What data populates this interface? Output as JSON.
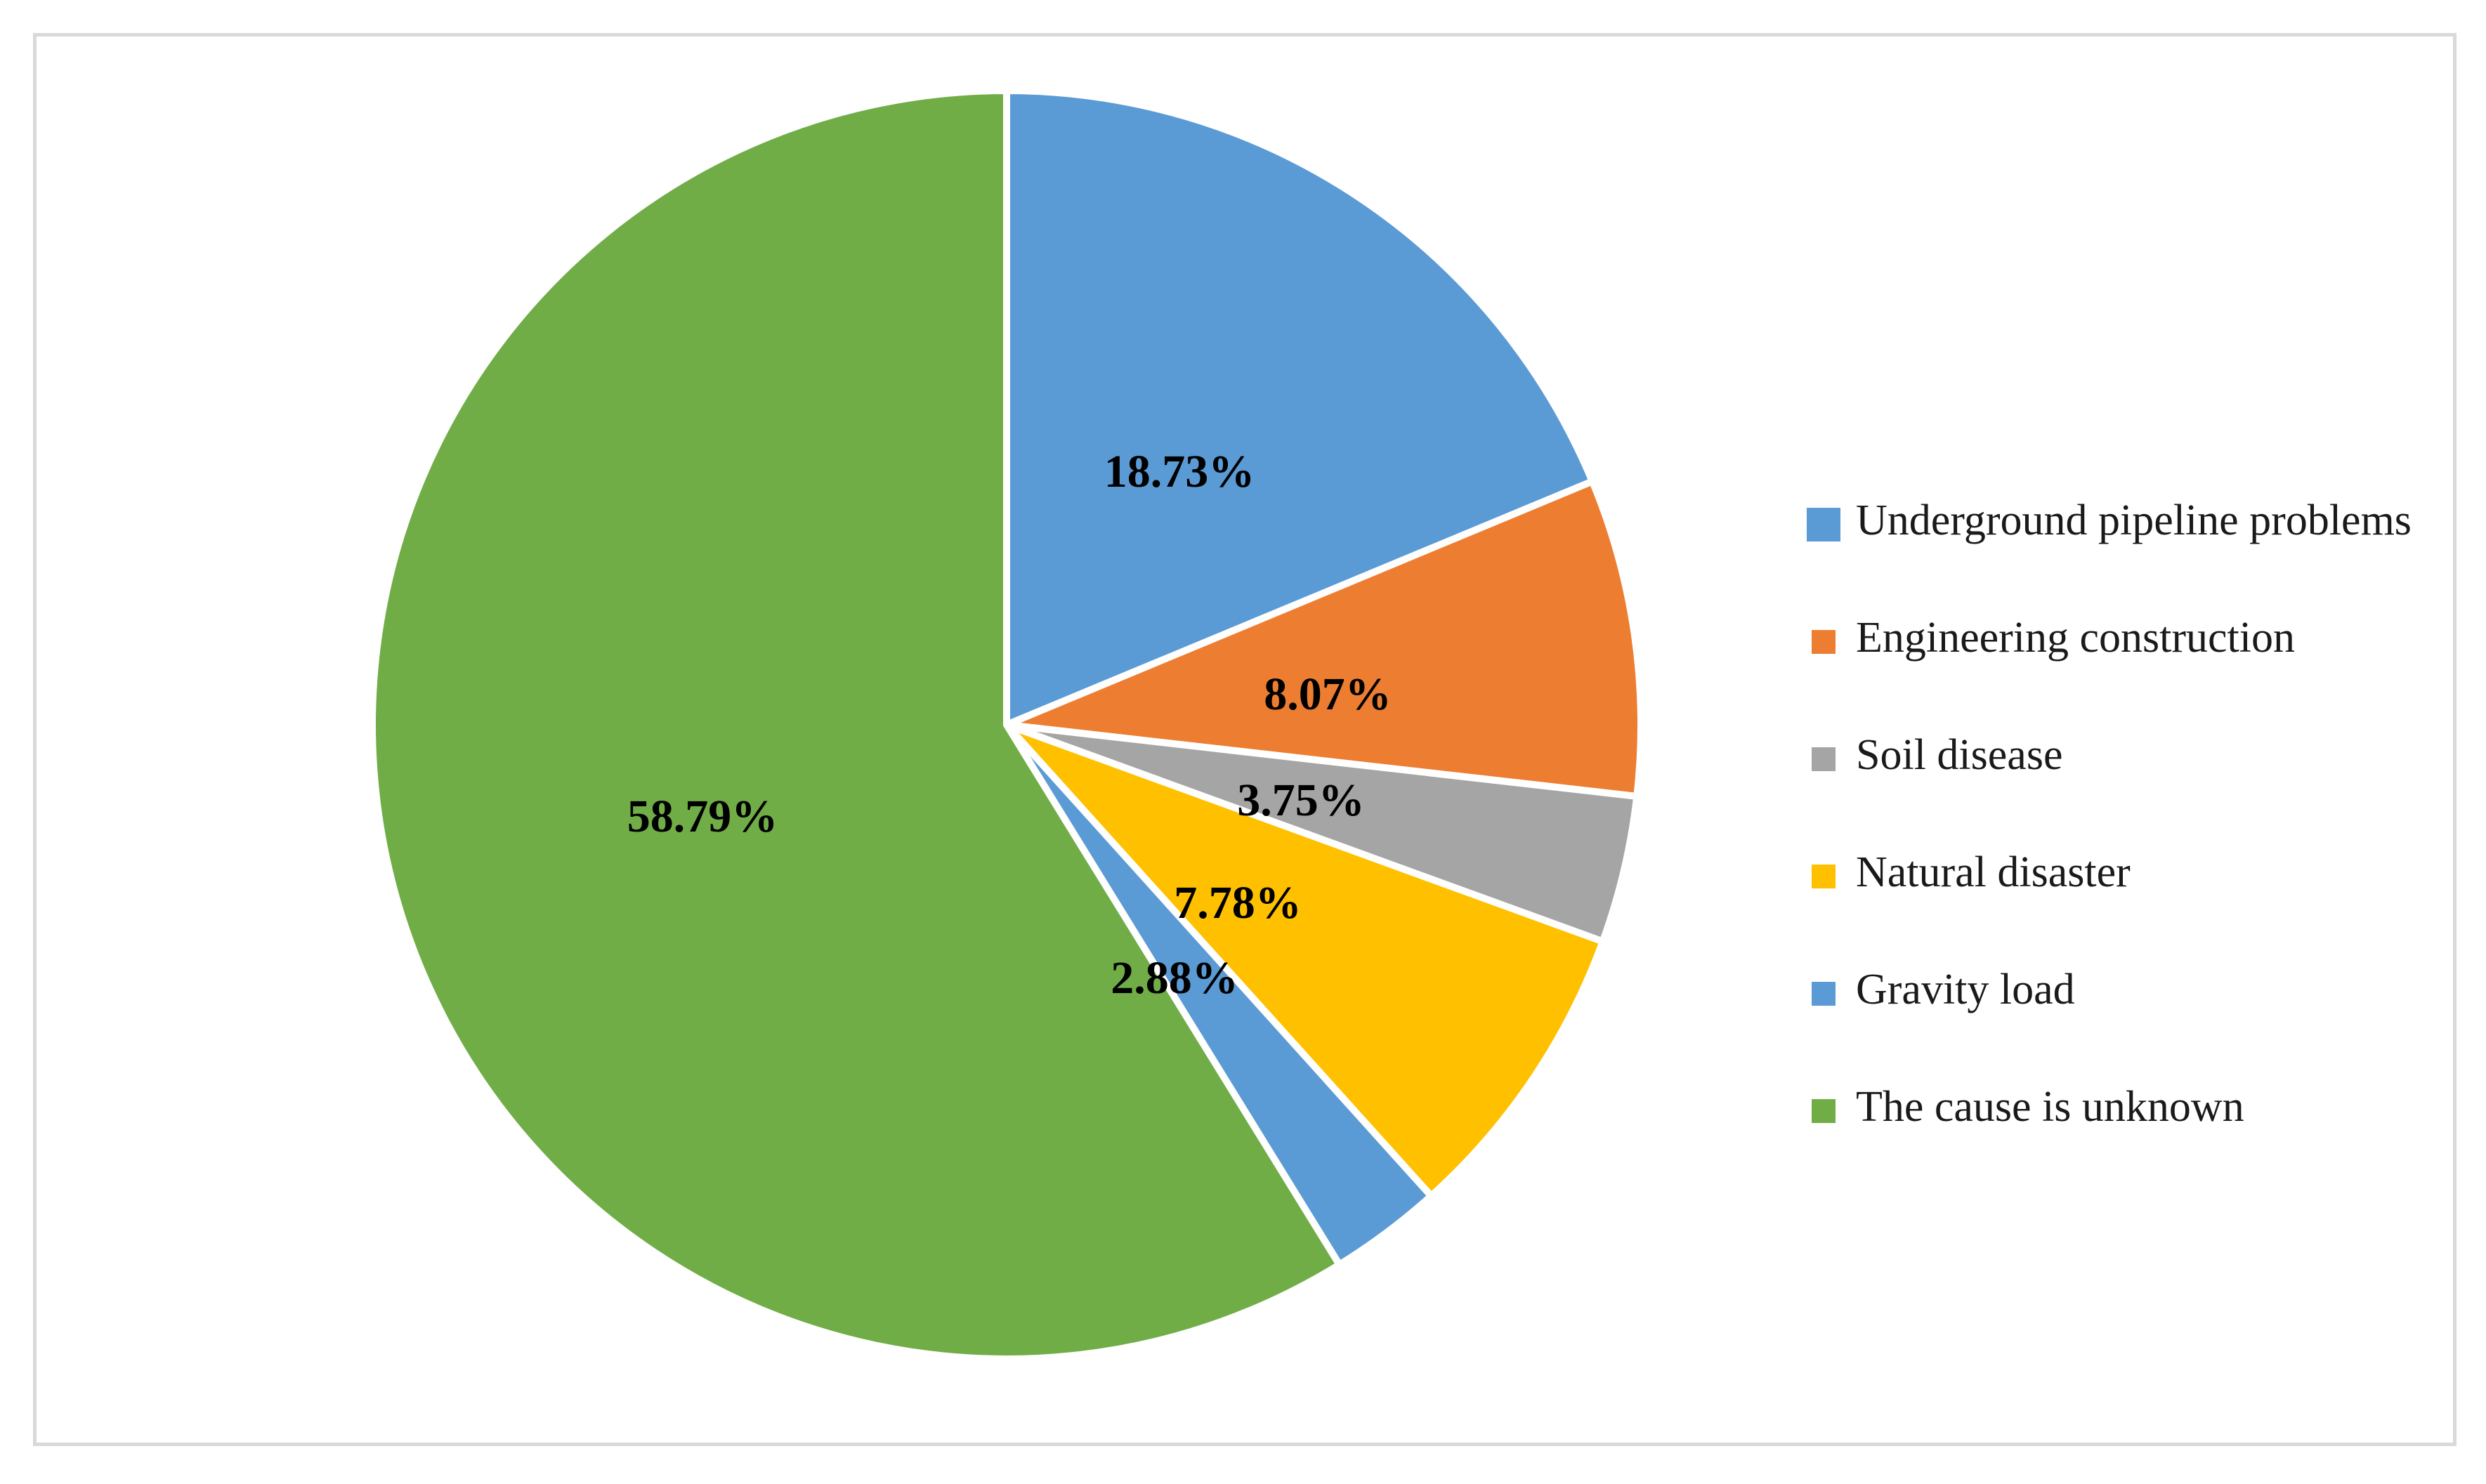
{
  "chart_data": {
    "type": "pie",
    "title": "",
    "legend_position": "right",
    "start_angle_deg": 0,
    "direction": "clockwise",
    "slices": [
      {
        "name": "Underground pipeline problems",
        "value": 18.73,
        "label": "18.73%",
        "color": "#5B9BD5"
      },
      {
        "name": "Engineering construction",
        "value": 8.07,
        "label": "8.07%",
        "color": "#ED7D31"
      },
      {
        "name": "Soil disease",
        "value": 3.75,
        "label": "3.75%",
        "color": "#A5A5A5"
      },
      {
        "name": "Natural disaster",
        "value": 7.78,
        "label": "7.78%",
        "color": "#FFC000"
      },
      {
        "name": "Gravity load",
        "value": 2.88,
        "label": "2.88%",
        "color": "#5B9BD5"
      },
      {
        "name": "The cause is unknown",
        "value": 58.79,
        "label": "58.79%",
        "color": "#70AD47"
      }
    ]
  }
}
